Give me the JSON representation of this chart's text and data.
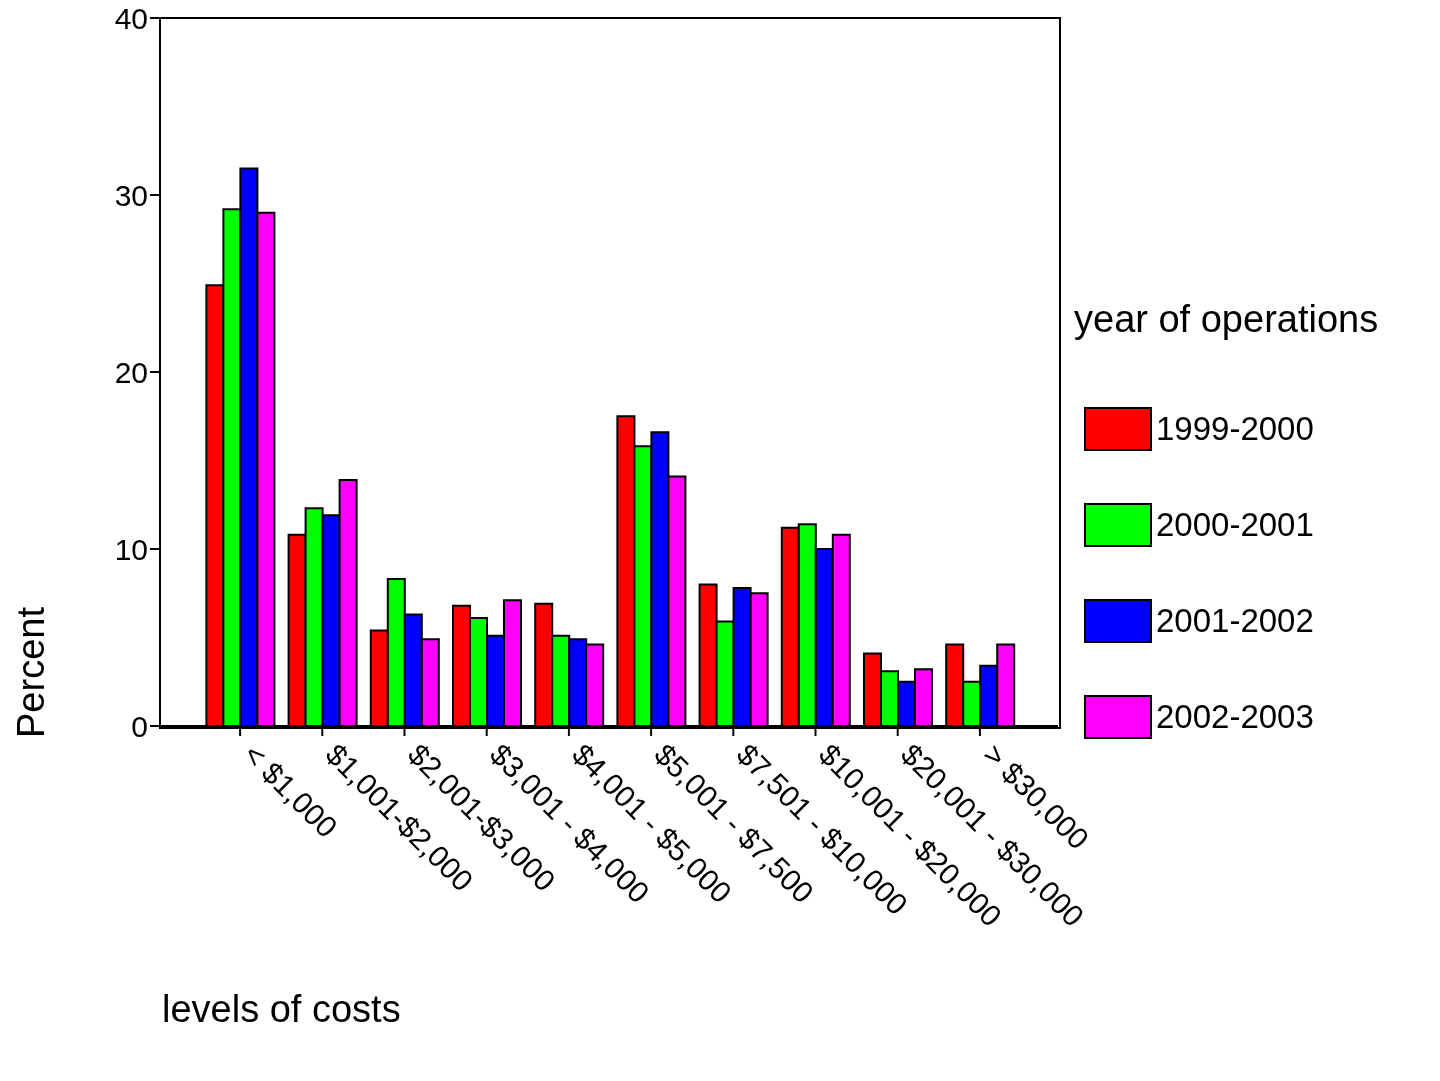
{
  "chart_data": {
    "type": "bar",
    "xlabel": "levels of costs",
    "ylabel": "Percent",
    "legend_title": "year of operations",
    "categories": [
      "< $1,000",
      "$1,001-$2,000",
      "$2,001-$3,000",
      "$3,001 - $4,000",
      "$4,001 - $5,000",
      "$5,001 - $7,500",
      "$7,501 - $10,000",
      "$10,001 - $20,000",
      "$20,001 - $30,000",
      "> $30,000"
    ],
    "series": [
      {
        "name": "1999-2000",
        "color": "#ff0000",
        "values": [
          24.9,
          10.8,
          5.4,
          6.8,
          6.9,
          17.5,
          8.0,
          11.2,
          4.1,
          4.6
        ]
      },
      {
        "name": "2000-2001",
        "color": "#00ff00",
        "values": [
          29.2,
          12.3,
          8.3,
          6.1,
          5.1,
          15.8,
          5.9,
          11.4,
          3.1,
          2.5
        ]
      },
      {
        "name": "2001-2002",
        "color": "#0000ff",
        "values": [
          31.5,
          11.9,
          6.3,
          5.1,
          4.9,
          16.6,
          7.8,
          10.0,
          2.5,
          3.4
        ]
      },
      {
        "name": "2002-2003",
        "color": "#ff00ff",
        "values": [
          29.0,
          13.9,
          4.9,
          7.1,
          4.6,
          14.1,
          7.5,
          10.8,
          3.2,
          4.6
        ]
      }
    ],
    "ylim": [
      0,
      40
    ],
    "yticks": [
      0,
      10,
      20,
      30,
      40
    ],
    "grid": false,
    "legend": "right"
  }
}
